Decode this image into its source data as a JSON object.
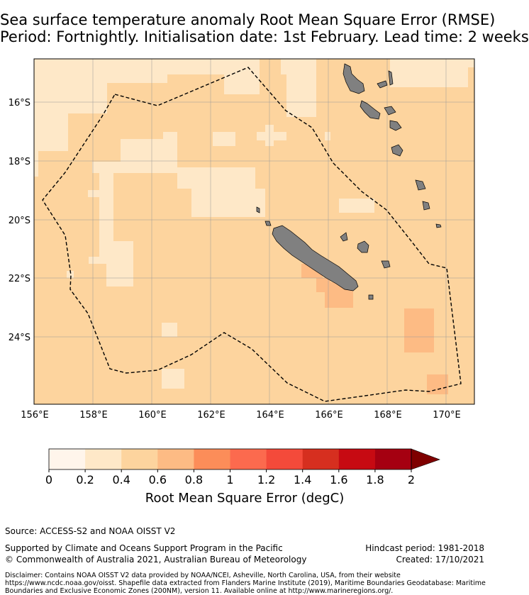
{
  "title": {
    "line1": "Sea surface temperature anomaly Root Mean Square Error (RMSE)",
    "line2": "Period: Fortnightly. Initialisation date: 1st February. Lead time: 2 weeks"
  },
  "map": {
    "lat_ticks": [
      "16°S",
      "18°S",
      "20°S",
      "22°S",
      "24°S"
    ],
    "lon_ticks": [
      "156°E",
      "158°E",
      "160°E",
      "162°E",
      "164°E",
      "166°E",
      "168°E",
      "170°E"
    ],
    "lon_range": [
      156,
      171
    ],
    "lat_range": [
      -14.5,
      -26.3
    ],
    "colors": {
      "ocean_main": "#fdd49e",
      "ocean_low": "#fee8c8",
      "ocean_high": "#fdbb84",
      "land": "#808080",
      "grid": "#999999"
    }
  },
  "colorbar": {
    "ticks": [
      "0",
      "0.2",
      "0.4",
      "0.6",
      "0.8",
      "1",
      "1.2",
      "1.4",
      "1.6",
      "1.8",
      "2"
    ],
    "colors": [
      "#fff5eb",
      "#fee8c8",
      "#fdd49e",
      "#fdbb84",
      "#fc8d59",
      "#fc6a4e",
      "#f44a3a",
      "#d62f1f",
      "#c70a12",
      "#a50011"
    ],
    "extend_color": "#7f0000",
    "label": "Root Mean Square Error (degC)"
  },
  "footer": {
    "source": "Source: ACCESS-S2 and NOAA OISST V2",
    "supported": "Supported by Climate and Oceans Support Program in the Pacific",
    "copyright": "© Commonwealth of Australia 2021, Australian Bureau of Meteorology",
    "hindcast": "Hindcast period: 1981-2018",
    "created": "Created: 17/10/2021",
    "disclaimer": "Disclaimer: Contains NOAA OISST V2 data provided by NOAA/NCEI, Asheville, North Carolina, USA, from their website https://www.ncdc.noaa.gov/oisst. Shapefile data extracted from Flanders Marine Institute (2019), Maritime Boundaries Geodatabase: Maritime Boundaries and Exclusive Economic Zones (200NM), version 11. Available online at http://www.marineregions.org/."
  }
}
